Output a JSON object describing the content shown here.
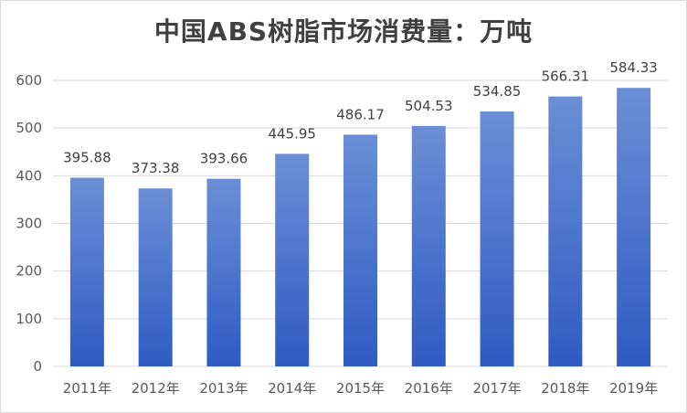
{
  "title": "中国ABS树脂市场消费量：万吨",
  "chart_data": {
    "type": "bar",
    "title": "中国ABS树脂市场消费量：万吨",
    "categories": [
      "2011年",
      "2012年",
      "2013年",
      "2014年",
      "2015年",
      "2016年",
      "2017年",
      "2018年",
      "2019年"
    ],
    "values": [
      395.88,
      373.38,
      393.66,
      445.95,
      486.17,
      504.53,
      534.85,
      566.31,
      584.33
    ],
    "data_labels": [
      "395.88",
      "373.38",
      "393.66",
      "445.95",
      "486.17",
      "504.53",
      "534.85",
      "566.31",
      "584.33"
    ],
    "ylim": [
      0,
      600
    ],
    "y_ticks": [
      "0",
      "100",
      "200",
      "300",
      "400",
      "500",
      "600"
    ],
    "xlabel": "",
    "ylabel": "",
    "grid": true,
    "legend": "none",
    "colors": {
      "bar_top": "#6a8fd6",
      "bar_bottom": "#2f5bc4",
      "grid": "#d9d9d9"
    }
  }
}
